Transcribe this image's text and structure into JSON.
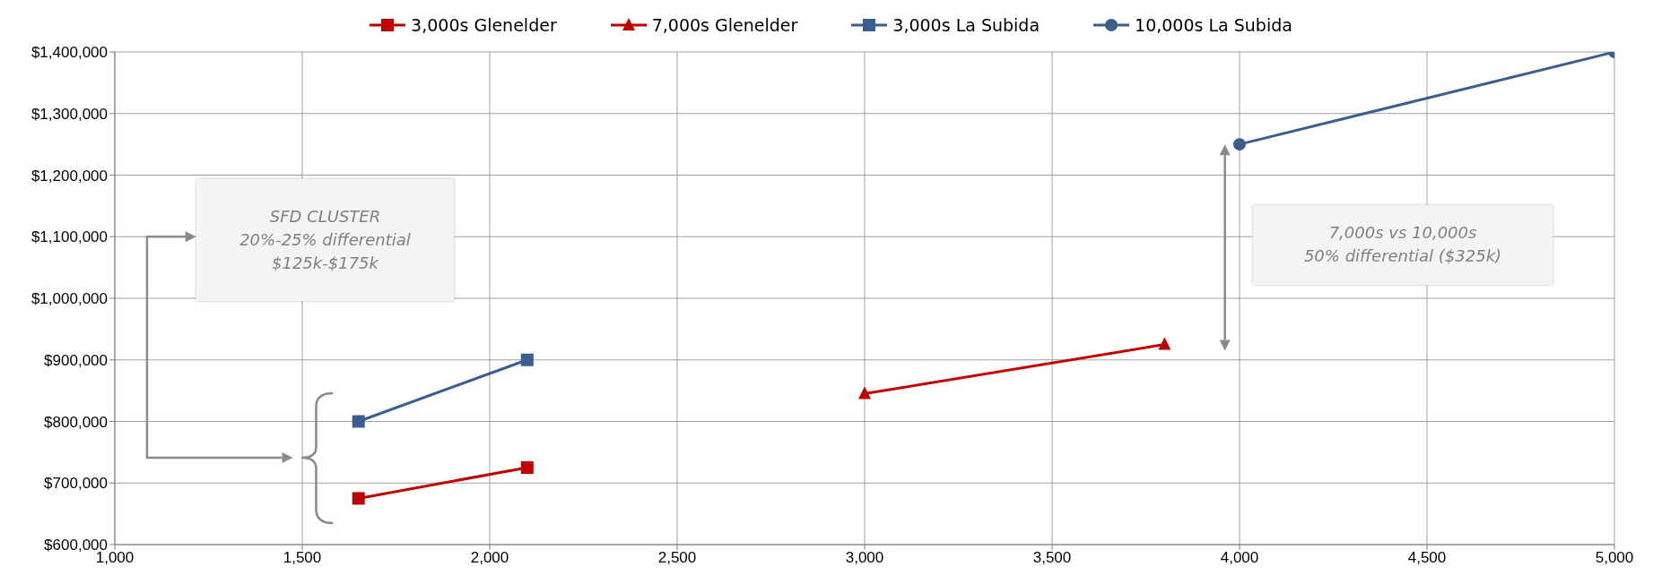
{
  "chart_data": {
    "type": "line",
    "legend": "top",
    "grid": true,
    "xlim": [
      1000,
      5000
    ],
    "xticks": [
      {
        "value": 1000,
        "label": "1,000"
      },
      {
        "value": 1500,
        "label": "1,500"
      },
      {
        "value": 2000,
        "label": "2,000"
      },
      {
        "value": 2500,
        "label": "2,500"
      },
      {
        "value": 3000,
        "label": "3,000"
      },
      {
        "value": 3500,
        "label": "3,500"
      },
      {
        "value": 4000,
        "label": "4,000"
      },
      {
        "value": 4500,
        "label": "4,500"
      },
      {
        "value": 5000,
        "label": "5,000"
      }
    ],
    "ylim": [
      600000,
      1400000
    ],
    "yticks": [
      {
        "value": 600000,
        "label": "$600,000"
      },
      {
        "value": 700000,
        "label": "$700,000"
      },
      {
        "value": 800000,
        "label": "$800,000"
      },
      {
        "value": 900000,
        "label": "$900,000"
      },
      {
        "value": 1000000,
        "label": "$1,000,000"
      },
      {
        "value": 1100000,
        "label": "$1,100,000"
      },
      {
        "value": 1200000,
        "label": "$1,200,000"
      },
      {
        "value": 1300000,
        "label": "$1,300,000"
      },
      {
        "value": 1400000,
        "label": "$1,400,000"
      }
    ],
    "series": [
      {
        "name": "3,000s Glenelder",
        "color": "#c00000",
        "marker": "square",
        "x": [
          1650,
          2100
        ],
        "values": [
          675000,
          725000
        ]
      },
      {
        "name": "7,000s Glenelder",
        "color": "#c00000",
        "marker": "triangle",
        "x": [
          3000,
          3800
        ],
        "values": [
          845000,
          925000
        ]
      },
      {
        "name": "3,000s La Subida",
        "color": "#3a5f8f",
        "marker": "square",
        "x": [
          1650,
          2100
        ],
        "values": [
          800000,
          900000
        ]
      },
      {
        "name": "10,000s La Subida",
        "color": "#3a5f8f",
        "marker": "circle",
        "x": [
          4000,
          5000
        ],
        "values": [
          1250000,
          1400000
        ]
      }
    ],
    "annotations": [
      "SFD CLUSTER\n20%-25% differential\n$125k-$175k",
      "7,000s vs 10,000s\n50% differential ($325k)"
    ]
  }
}
